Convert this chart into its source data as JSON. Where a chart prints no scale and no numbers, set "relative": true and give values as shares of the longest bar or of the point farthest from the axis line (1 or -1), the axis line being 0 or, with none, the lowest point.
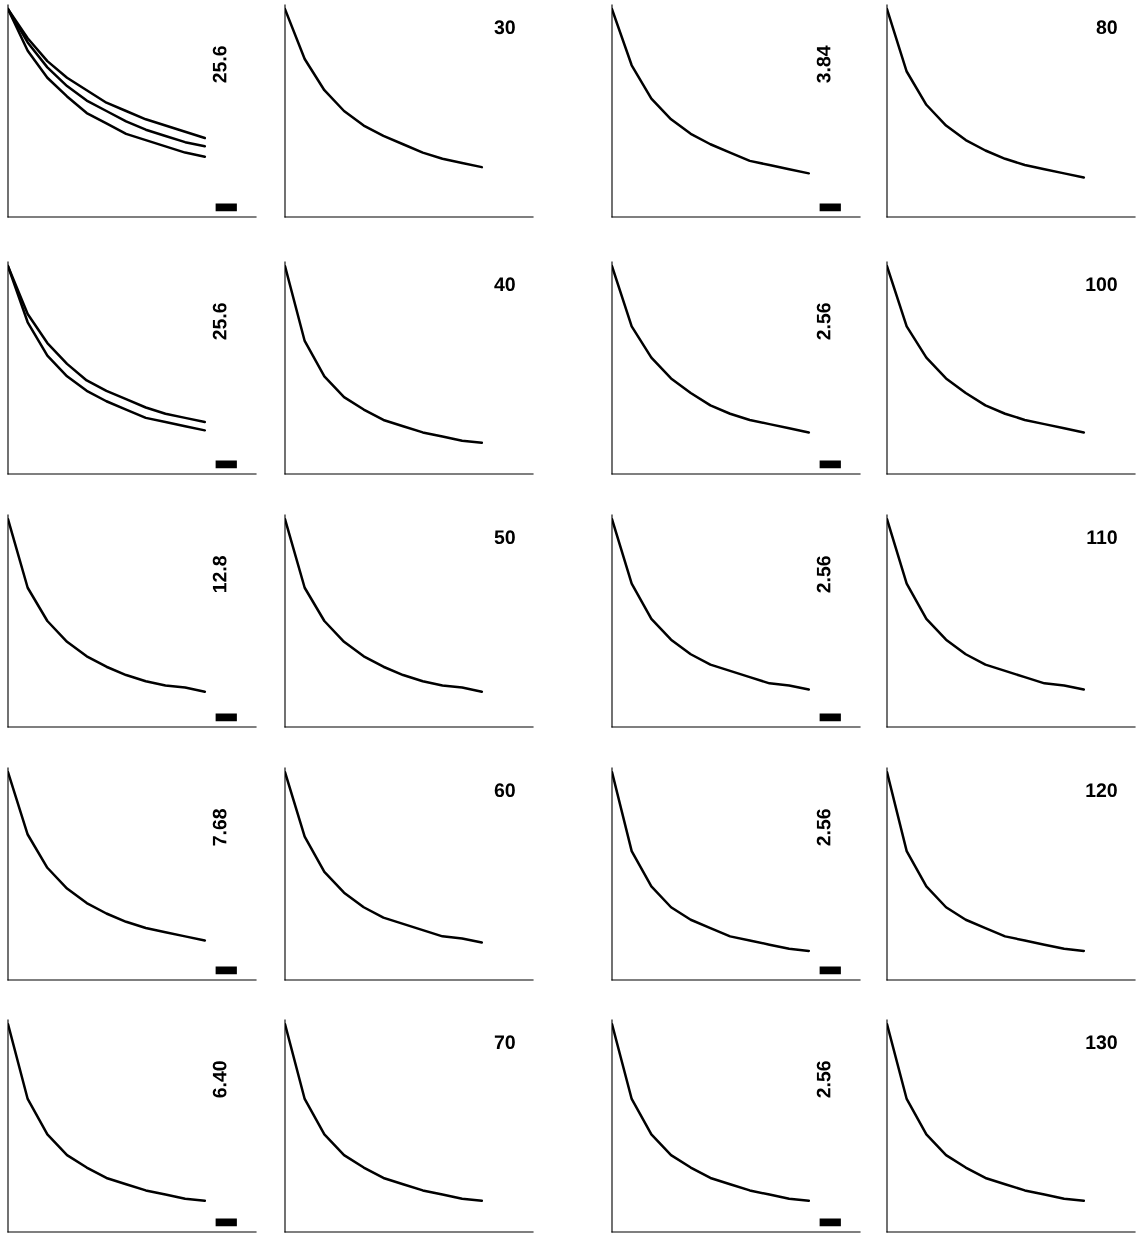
{
  "chart_data": [
    {
      "type": "line",
      "relative": true,
      "annotations": [
        "25.6"
      ],
      "categories": [
        null,
        null,
        null,
        null,
        null,
        null,
        null,
        null,
        null,
        null,
        null,
        null,
        null
      ],
      "series": [
        {
          "color": "#000000",
          "values": [
            1,
            0.8,
            0.67,
            0.58,
            0.5,
            0.45,
            0.4,
            0.37,
            0.34,
            0.31,
            0.29,
            null,
            null
          ]
        },
        {
          "color": "#000000",
          "values": [
            1,
            0.84,
            0.72,
            0.63,
            0.56,
            0.51,
            0.46,
            0.42,
            0.39,
            0.36,
            0.34,
            null,
            null
          ]
        },
        {
          "color": "#000000",
          "values": [
            1,
            0.86,
            0.75,
            0.67,
            0.61,
            0.55,
            0.51,
            0.47,
            0.44,
            0.41,
            0.38,
            null,
            null
          ]
        }
      ]
    },
    {
      "type": "line",
      "relative": true,
      "annotations": [
        "30"
      ],
      "categories": [
        null,
        null,
        null,
        null,
        null,
        null,
        null,
        null,
        null,
        null,
        null,
        null,
        null
      ],
      "series": [
        {
          "color": "#000000",
          "values": [
            1,
            0.76,
            0.61,
            0.51,
            0.44,
            0.39,
            0.35,
            0.31,
            0.28,
            0.26,
            0.24,
            null,
            null
          ]
        }
      ]
    },
    {
      "type": "line",
      "relative": true,
      "annotations": [
        "3.84"
      ],
      "categories": [
        null,
        null,
        null,
        null,
        null,
        null,
        null,
        null,
        null,
        null,
        null,
        null,
        null
      ],
      "series": [
        {
          "color": "#000000",
          "values": [
            1,
            0.73,
            0.57,
            0.47,
            0.4,
            0.35,
            0.31,
            0.27,
            0.25,
            0.23,
            0.21,
            null,
            null
          ]
        }
      ]
    },
    {
      "type": "line",
      "relative": true,
      "annotations": [
        "80"
      ],
      "categories": [
        null,
        null,
        null,
        null,
        null,
        null,
        null,
        null,
        null,
        null,
        null,
        null,
        null
      ],
      "series": [
        {
          "color": "#000000",
          "values": [
            1,
            0.7,
            0.54,
            0.44,
            0.37,
            0.32,
            0.28,
            0.25,
            0.23,
            0.21,
            0.19,
            null,
            null
          ]
        }
      ]
    },
    {
      "type": "line",
      "relative": true,
      "annotations": [
        "25.6"
      ],
      "categories": [
        null,
        null,
        null,
        null,
        null,
        null,
        null,
        null,
        null,
        null,
        null,
        null,
        null
      ],
      "series": [
        {
          "color": "#000000",
          "values": [
            1,
            0.73,
            0.57,
            0.47,
            0.4,
            0.35,
            0.31,
            0.27,
            0.25,
            0.23,
            0.21,
            null,
            null
          ]
        },
        {
          "color": "#000000",
          "values": [
            1,
            0.77,
            0.63,
            0.53,
            0.45,
            0.4,
            0.36,
            0.32,
            0.29,
            0.27,
            0.25,
            null,
            null
          ]
        }
      ]
    },
    {
      "type": "line",
      "relative": true,
      "annotations": [
        "40"
      ],
      "categories": [
        null,
        null,
        null,
        null,
        null,
        null,
        null,
        null,
        null,
        null,
        null,
        null,
        null
      ],
      "series": [
        {
          "color": "#000000",
          "values": [
            1,
            0.64,
            0.47,
            0.37,
            0.31,
            0.26,
            0.23,
            0.2,
            0.18,
            0.16,
            0.15,
            null,
            null
          ]
        }
      ]
    },
    {
      "type": "line",
      "relative": true,
      "annotations": [
        "2.56"
      ],
      "categories": [
        null,
        null,
        null,
        null,
        null,
        null,
        null,
        null,
        null,
        null,
        null,
        null,
        null
      ],
      "series": [
        {
          "color": "#000000",
          "values": [
            1,
            0.71,
            0.56,
            0.46,
            0.39,
            0.33,
            0.29,
            0.26,
            0.24,
            0.22,
            0.2,
            null,
            null
          ]
        }
      ]
    },
    {
      "type": "line",
      "relative": true,
      "annotations": [
        "100"
      ],
      "categories": [
        null,
        null,
        null,
        null,
        null,
        null,
        null,
        null,
        null,
        null,
        null,
        null,
        null
      ],
      "series": [
        {
          "color": "#000000",
          "values": [
            1,
            0.71,
            0.56,
            0.46,
            0.39,
            0.33,
            0.29,
            0.26,
            0.24,
            0.22,
            0.2,
            null,
            null
          ]
        }
      ]
    },
    {
      "type": "line",
      "relative": true,
      "annotations": [
        "12.8"
      ],
      "categories": [
        null,
        null,
        null,
        null,
        null,
        null,
        null,
        null,
        null,
        null,
        null,
        null,
        null
      ],
      "series": [
        {
          "color": "#000000",
          "values": [
            1,
            0.67,
            0.51,
            0.41,
            0.34,
            0.29,
            0.25,
            0.22,
            0.2,
            0.19,
            0.17,
            null,
            null
          ]
        }
      ]
    },
    {
      "type": "line",
      "relative": true,
      "annotations": [
        "50"
      ],
      "categories": [
        null,
        null,
        null,
        null,
        null,
        null,
        null,
        null,
        null,
        null,
        null,
        null,
        null
      ],
      "series": [
        {
          "color": "#000000",
          "values": [
            1,
            0.67,
            0.51,
            0.41,
            0.34,
            0.29,
            0.25,
            0.22,
            0.2,
            0.19,
            0.17,
            null,
            null
          ]
        }
      ]
    },
    {
      "type": "line",
      "relative": true,
      "annotations": [
        "2.56"
      ],
      "categories": [
        null,
        null,
        null,
        null,
        null,
        null,
        null,
        null,
        null,
        null,
        null,
        null,
        null
      ],
      "series": [
        {
          "color": "#000000",
          "values": [
            1,
            0.69,
            0.52,
            0.42,
            0.35,
            0.3,
            0.27,
            0.24,
            0.21,
            0.2,
            0.18,
            null,
            null
          ]
        }
      ]
    },
    {
      "type": "line",
      "relative": true,
      "annotations": [
        "110"
      ],
      "categories": [
        null,
        null,
        null,
        null,
        null,
        null,
        null,
        null,
        null,
        null,
        null,
        null,
        null
      ],
      "series": [
        {
          "color": "#000000",
          "values": [
            1,
            0.69,
            0.52,
            0.42,
            0.35,
            0.3,
            0.27,
            0.24,
            0.21,
            0.2,
            0.18,
            null,
            null
          ]
        }
      ]
    },
    {
      "type": "line",
      "relative": true,
      "annotations": [
        "7.68"
      ],
      "categories": [
        null,
        null,
        null,
        null,
        null,
        null,
        null,
        null,
        null,
        null,
        null,
        null,
        null
      ],
      "series": [
        {
          "color": "#000000",
          "values": [
            1,
            0.7,
            0.54,
            0.44,
            0.37,
            0.32,
            0.28,
            0.25,
            0.23,
            0.21,
            0.19,
            null,
            null
          ]
        }
      ]
    },
    {
      "type": "line",
      "relative": true,
      "annotations": [
        "60"
      ],
      "categories": [
        null,
        null,
        null,
        null,
        null,
        null,
        null,
        null,
        null,
        null,
        null,
        null,
        null
      ],
      "series": [
        {
          "color": "#000000",
          "values": [
            1,
            0.69,
            0.52,
            0.42,
            0.35,
            0.3,
            0.27,
            0.24,
            0.21,
            0.2,
            0.18,
            null,
            null
          ]
        }
      ]
    },
    {
      "type": "line",
      "relative": true,
      "annotations": [
        "2.56"
      ],
      "categories": [
        null,
        null,
        null,
        null,
        null,
        null,
        null,
        null,
        null,
        null,
        null,
        null,
        null
      ],
      "series": [
        {
          "color": "#000000",
          "values": [
            1,
            0.62,
            0.45,
            0.35,
            0.29,
            0.25,
            0.21,
            0.19,
            0.17,
            0.15,
            0.14,
            null,
            null
          ]
        }
      ]
    },
    {
      "type": "line",
      "relative": true,
      "annotations": [
        "120"
      ],
      "categories": [
        null,
        null,
        null,
        null,
        null,
        null,
        null,
        null,
        null,
        null,
        null,
        null,
        null
      ],
      "series": [
        {
          "color": "#000000",
          "values": [
            1,
            0.62,
            0.45,
            0.35,
            0.29,
            0.25,
            0.21,
            0.19,
            0.17,
            0.15,
            0.14,
            null,
            null
          ]
        }
      ]
    },
    {
      "type": "line",
      "relative": true,
      "annotations": [
        "6.40"
      ],
      "categories": [
        null,
        null,
        null,
        null,
        null,
        null,
        null,
        null,
        null,
        null,
        null,
        null,
        null
      ],
      "series": [
        {
          "color": "#000000",
          "values": [
            1,
            0.64,
            0.47,
            0.37,
            0.31,
            0.26,
            0.23,
            0.2,
            0.18,
            0.16,
            0.15,
            null,
            null
          ]
        }
      ]
    },
    {
      "type": "line",
      "relative": true,
      "annotations": [
        "70"
      ],
      "categories": [
        null,
        null,
        null,
        null,
        null,
        null,
        null,
        null,
        null,
        null,
        null,
        null,
        null
      ],
      "series": [
        {
          "color": "#000000",
          "values": [
            1,
            0.64,
            0.47,
            0.37,
            0.31,
            0.26,
            0.23,
            0.2,
            0.18,
            0.16,
            0.15,
            null,
            null
          ]
        }
      ]
    },
    {
      "type": "line",
      "relative": true,
      "annotations": [
        "2.56"
      ],
      "categories": [
        null,
        null,
        null,
        null,
        null,
        null,
        null,
        null,
        null,
        null,
        null,
        null,
        null
      ],
      "series": [
        {
          "color": "#000000",
          "values": [
            1,
            0.64,
            0.47,
            0.37,
            0.31,
            0.26,
            0.23,
            0.2,
            0.18,
            0.16,
            0.15,
            null,
            null
          ]
        }
      ]
    },
    {
      "type": "line",
      "relative": true,
      "annotations": [
        "130"
      ],
      "categories": [
        null,
        null,
        null,
        null,
        null,
        null,
        null,
        null,
        null,
        null,
        null,
        null,
        null
      ],
      "series": [
        {
          "color": "#000000",
          "values": [
            1,
            0.64,
            0.47,
            0.37,
            0.31,
            0.26,
            0.23,
            0.2,
            0.18,
            0.16,
            0.15,
            null,
            null
          ]
        }
      ]
    }
  ]
}
